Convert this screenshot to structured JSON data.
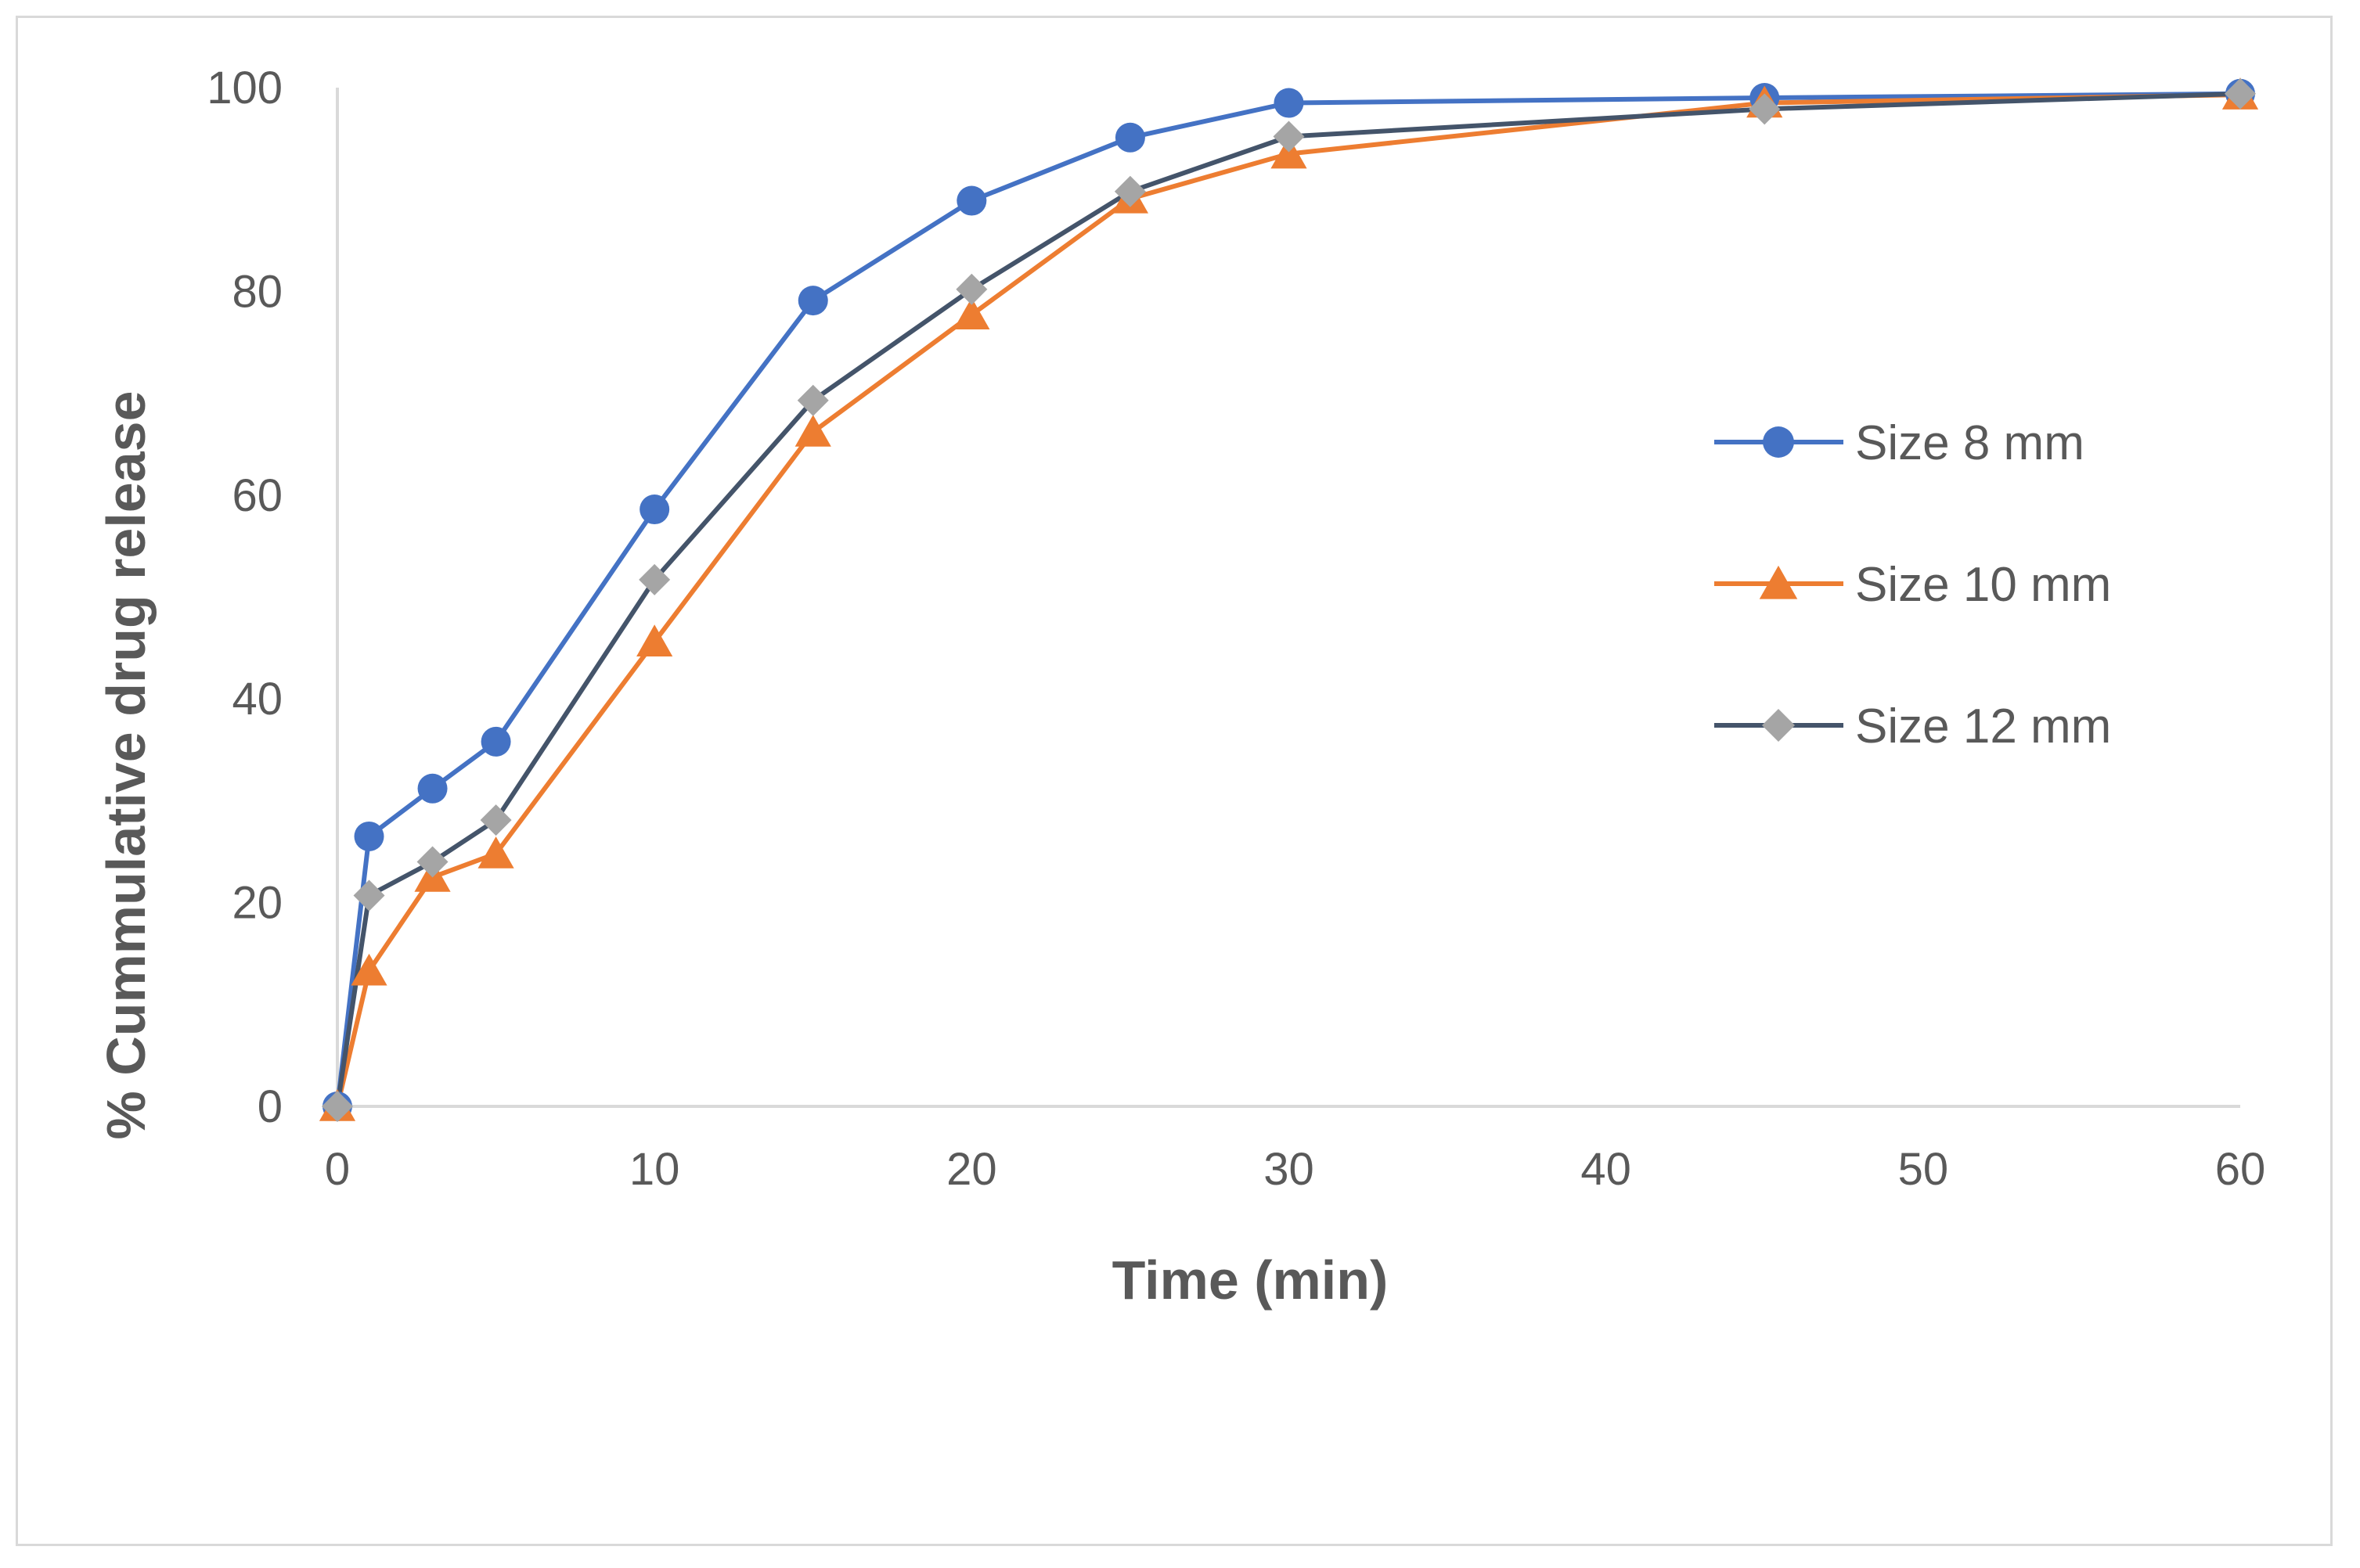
{
  "chart_data": {
    "type": "line",
    "title": "",
    "xlabel": "Time (min)",
    "ylabel": "% Cummulative  drug release",
    "xlim": [
      0,
      60
    ],
    "ylim": [
      0,
      100
    ],
    "x_ticks": [
      0,
      10,
      20,
      30,
      40,
      50,
      60
    ],
    "y_ticks": [
      0,
      20,
      40,
      60,
      80,
      100
    ],
    "grid": false,
    "legend_position": "right",
    "x": [
      0,
      1,
      3,
      5,
      10,
      15,
      20,
      25,
      30,
      45,
      60
    ],
    "series": [
      {
        "name": "Size 8 mm",
        "color": "#4472C4",
        "marker": "circle",
        "values": [
          0,
          26.5,
          31.2,
          35.8,
          58.6,
          79.1,
          88.9,
          95.1,
          98.5,
          99.0,
          99.4
        ]
      },
      {
        "name": "Size 10 mm",
        "color": "#ED7D31",
        "marker": "triangle",
        "values": [
          0,
          13.3,
          22.5,
          24.8,
          45.6,
          66.2,
          77.7,
          89.1,
          93.5,
          98.5,
          99.3
        ]
      },
      {
        "name": "Size 12 mm",
        "color": "#44546A",
        "marker_color": "#A5A5A5",
        "marker": "diamond",
        "values": [
          0,
          20.7,
          24.0,
          28.1,
          51.7,
          69.3,
          80.2,
          89.8,
          95.2,
          97.9,
          99.4
        ]
      }
    ]
  }
}
